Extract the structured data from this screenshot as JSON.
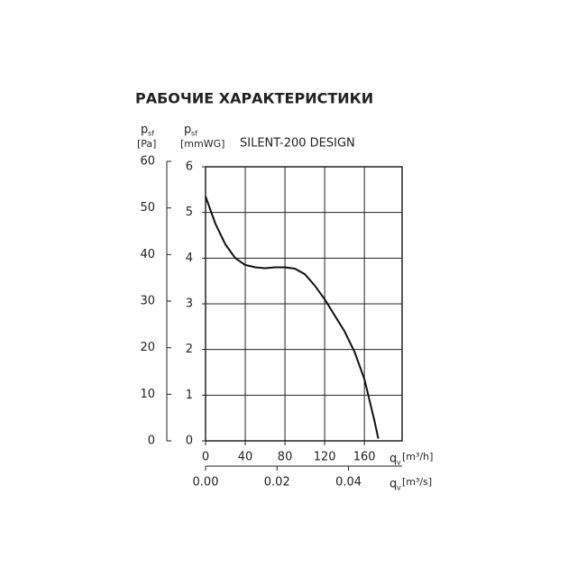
{
  "chart_data": {
    "type": "line",
    "title": "РАБОЧИЕ ХАРАКТЕРИСТИКИ",
    "y_label": {
      "symbol": "p",
      "subscript": "sf",
      "unit": "[mmWG]"
    },
    "y2_label": {
      "symbol": "p",
      "subscript": "sf",
      "unit": "[Pa]"
    },
    "x_label": {
      "symbol": "q",
      "subscript": "v",
      "unit": "[m³/h]"
    },
    "x2_label": {
      "symbol": "q",
      "subscript": "v",
      "unit": "[m³/s]"
    },
    "xlim": [
      0,
      198
    ],
    "xticks": [
      0,
      40,
      80,
      120,
      160
    ],
    "x2lim": [
      0,
      0.055
    ],
    "x2ticks": [
      {
        "value": 0,
        "label": "0.00"
      },
      {
        "value": 0.02,
        "label": "0.02"
      },
      {
        "value": 0.04,
        "label": "0.04"
      }
    ],
    "ylim": [
      0,
      6
    ],
    "yticks": [
      0,
      1,
      2,
      3,
      4,
      5,
      6
    ],
    "y2lim": [
      0,
      60
    ],
    "y2ticks": [
      0,
      10,
      20,
      30,
      40,
      50,
      60
    ],
    "grid": true,
    "x": [
      0,
      10,
      20,
      30,
      40,
      50,
      60,
      70,
      80,
      90,
      100,
      110,
      120,
      130,
      140,
      150,
      160,
      170,
      174
    ],
    "series": [
      {
        "name": "SILENT-200 DESIGN",
        "color": "#111111",
        "values": [
          5.35,
          4.75,
          4.3,
          4.0,
          3.85,
          3.8,
          3.78,
          3.8,
          3.8,
          3.77,
          3.65,
          3.4,
          3.1,
          2.75,
          2.4,
          1.95,
          1.35,
          0.45,
          0.05
        ]
      }
    ]
  }
}
